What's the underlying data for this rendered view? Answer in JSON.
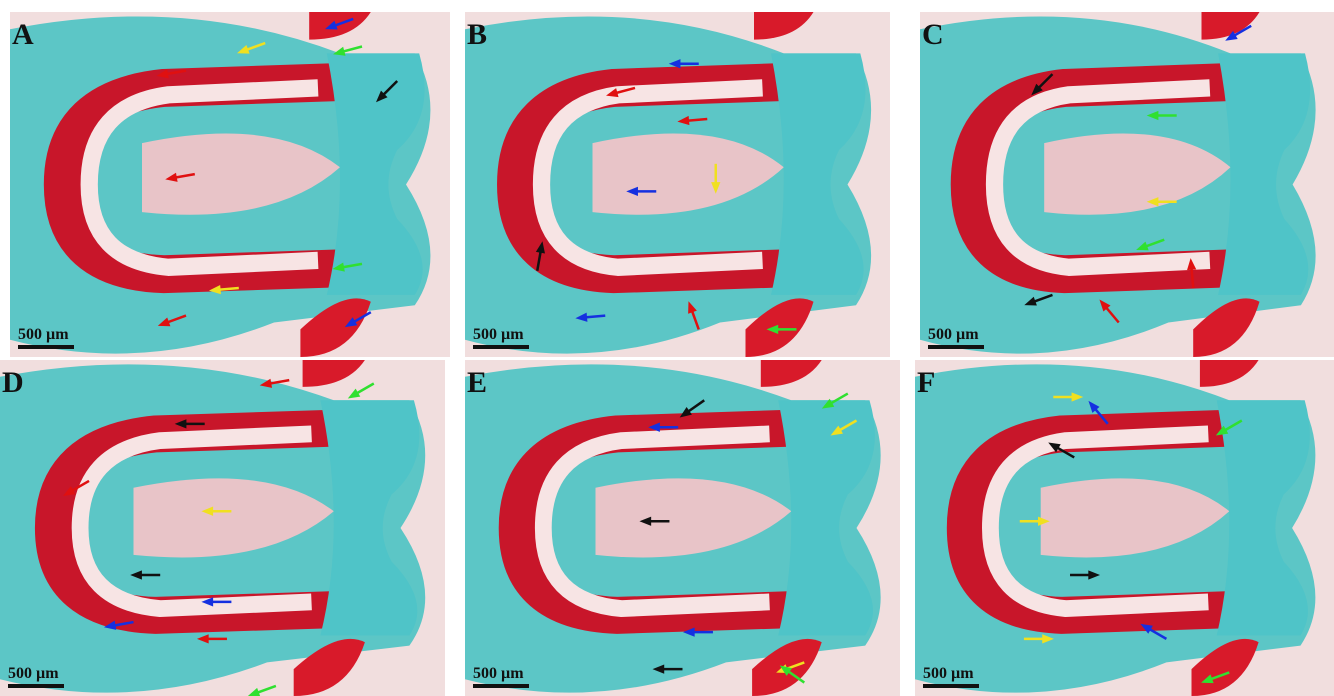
{
  "panels": [
    {
      "label": "A",
      "scale_label": "500 µm"
    },
    {
      "label": "B",
      "scale_label": "500 µm"
    },
    {
      "label": "C",
      "scale_label": "500 µm"
    },
    {
      "label": "D",
      "scale_label": "500 µm"
    },
    {
      "label": "E",
      "scale_label": "500 µm"
    },
    {
      "label": "F",
      "scale_label": "500 µm"
    }
  ]
}
